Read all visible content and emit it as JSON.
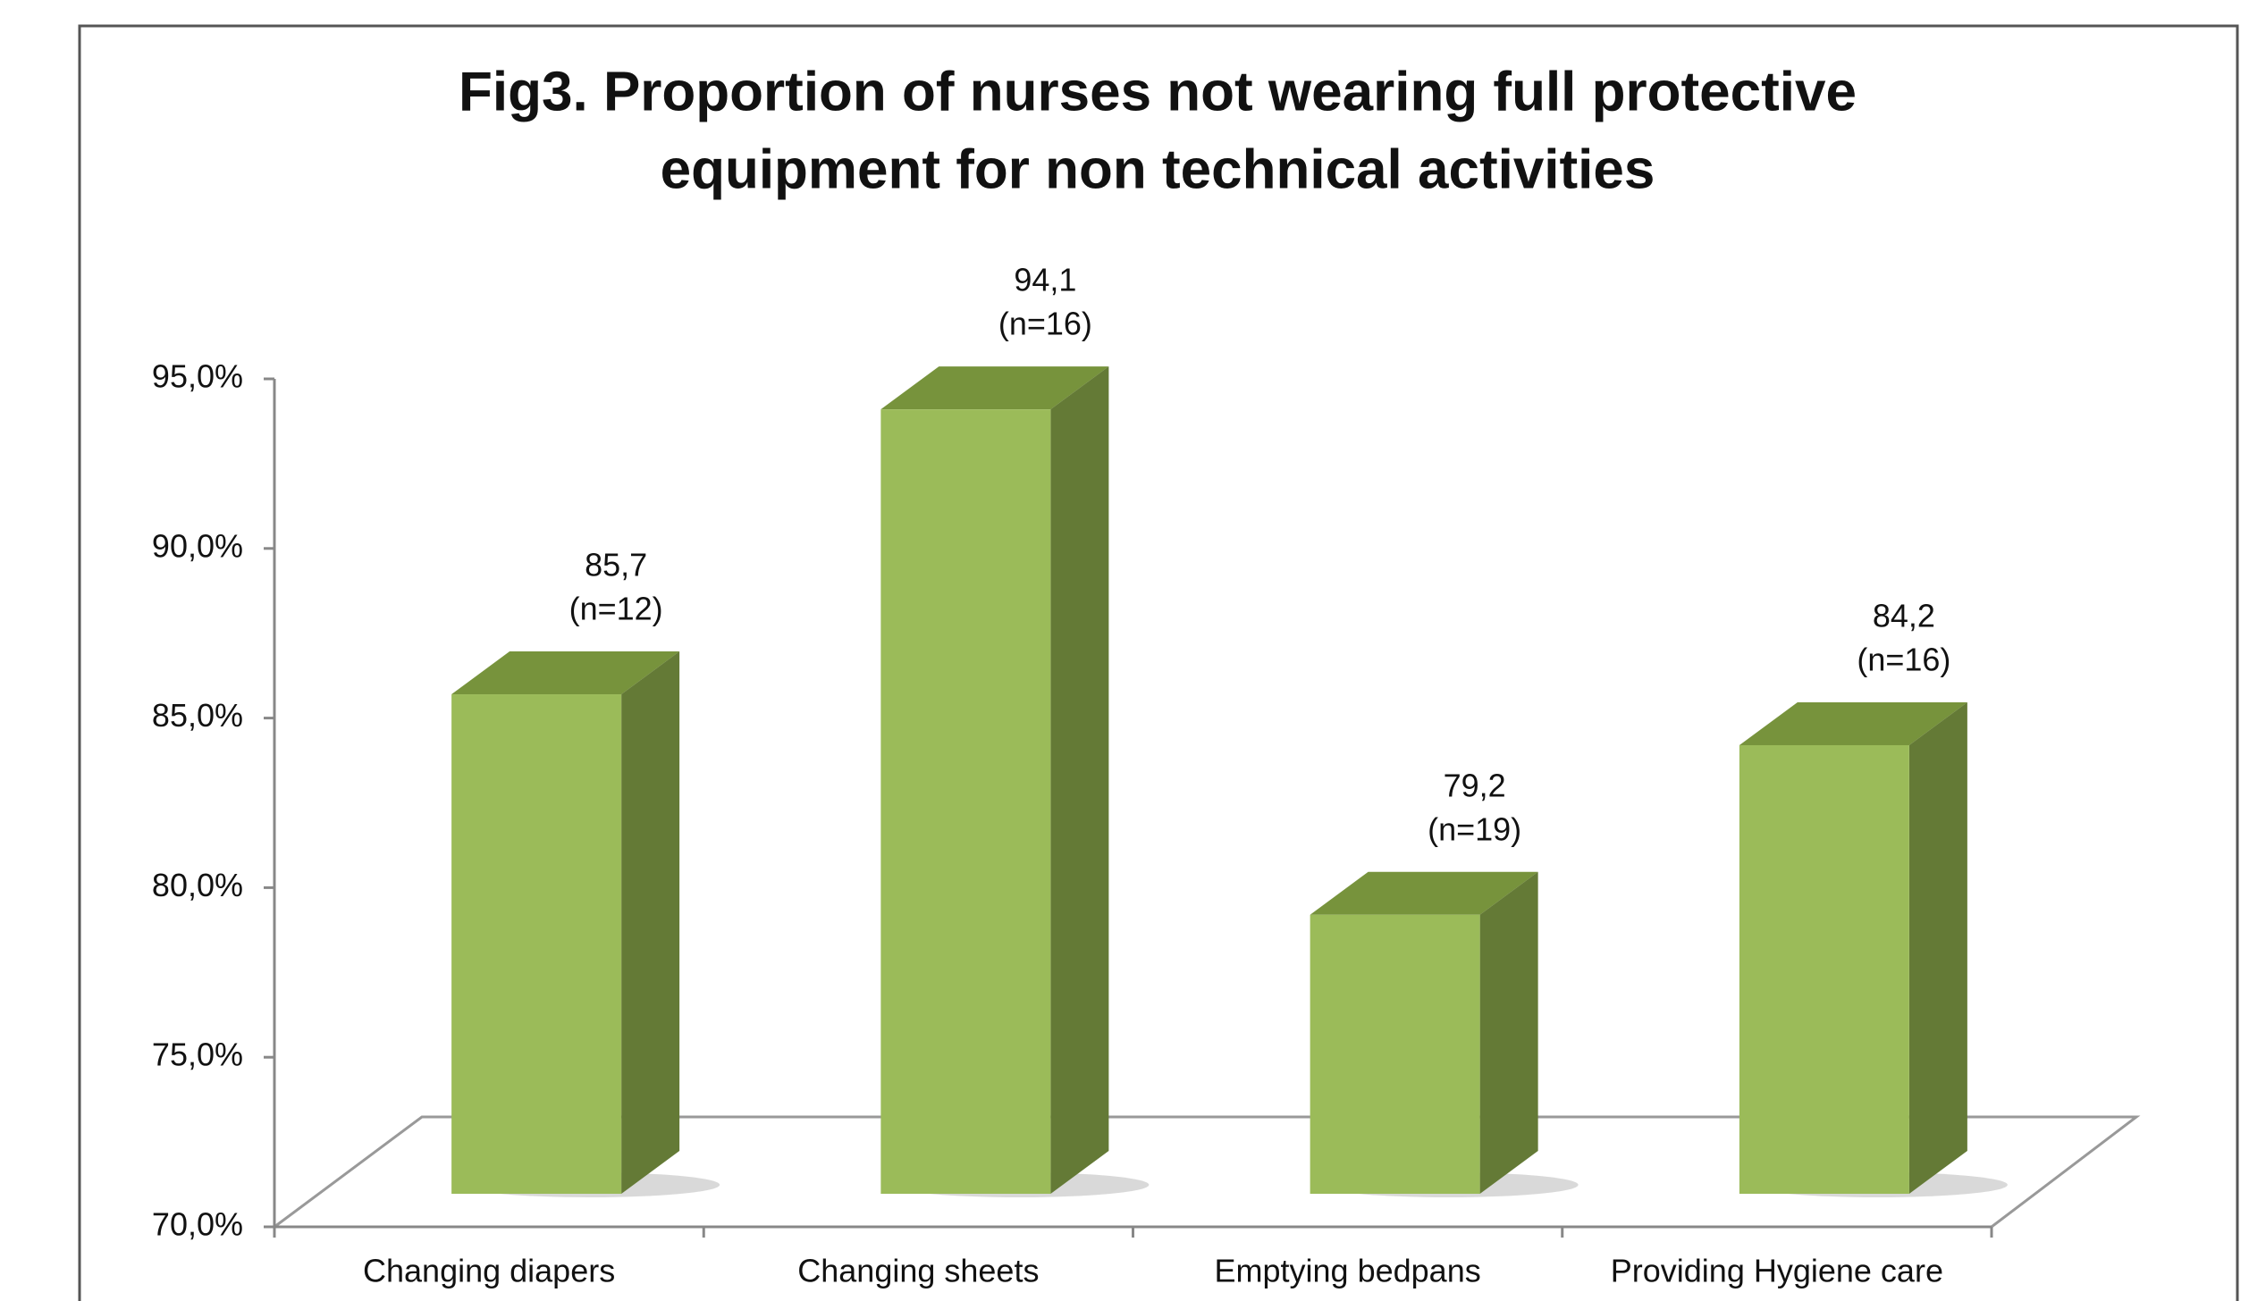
{
  "chart_data": {
    "type": "bar3d",
    "title": [
      "Fig3. Proportion of nurses not wearing full protective",
      "equipment for non technical activities"
    ],
    "categories": [
      "Changing diapers",
      "Changing sheets",
      "Emptying bedpans",
      "Providing Hygiene care"
    ],
    "values": [
      85.7,
      94.1,
      79.2,
      84.2
    ],
    "value_labels": [
      "85,7",
      "94,1",
      "79,2",
      "84,2"
    ],
    "annotations": [
      "(n=12)",
      "(n=16)",
      "(n=19)",
      "(n=16)"
    ],
    "color": "#9bbb59",
    "ylim": [
      70,
      95
    ],
    "yticks": [
      {
        "value": 70,
        "label": "70,0%"
      },
      {
        "value": 75,
        "label": "75,0%"
      },
      {
        "value": 80,
        "label": "80,0%"
      },
      {
        "value": 85,
        "label": "85,0%"
      },
      {
        "value": 90,
        "label": "90,0%"
      },
      {
        "value": 95,
        "label": "95,0%"
      }
    ]
  }
}
